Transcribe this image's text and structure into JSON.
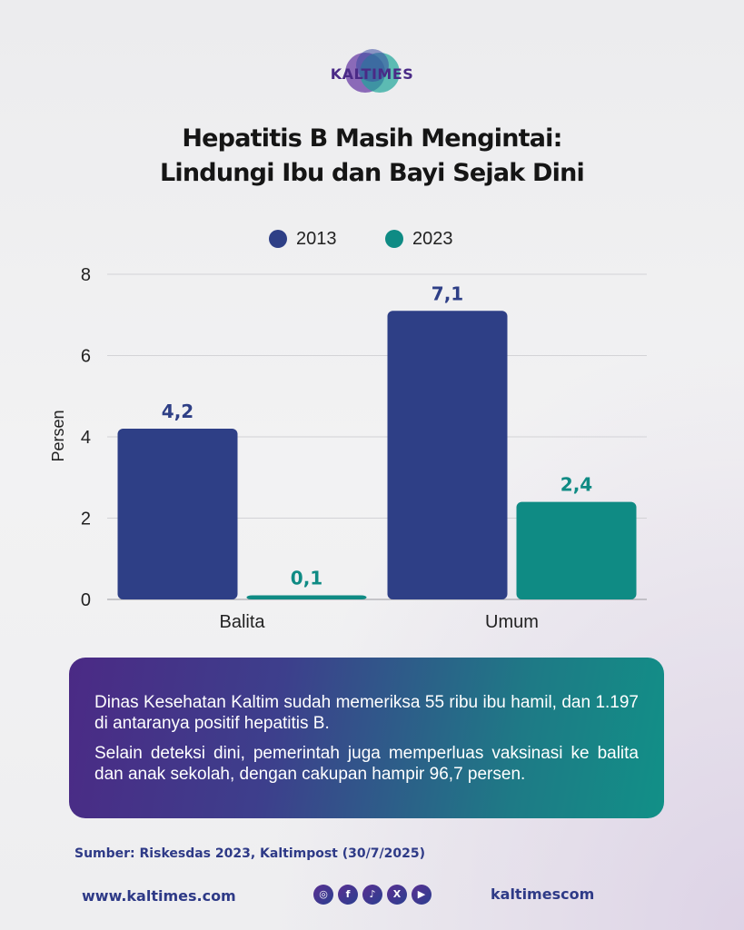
{
  "brand": {
    "logo_text": "KALTIMES"
  },
  "header": {
    "title_line1": "Hepatitis B Masih Mengintai:",
    "title_line2": "Lindungi Ibu dan Bayi Sejak Dini"
  },
  "colors": {
    "series_2013": "#2e3f86",
    "series_2023": "#0f8b84",
    "accent_text": "#2e3a87"
  },
  "chart_data": {
    "type": "bar",
    "categories": [
      "Balita",
      "Umum"
    ],
    "series": [
      {
        "name": "2013",
        "values": [
          4.2,
          7.1
        ],
        "labels": [
          "4,2",
          "7,1"
        ]
      },
      {
        "name": "2023",
        "values": [
          0.1,
          2.4
        ],
        "labels": [
          "0,1",
          "2,4"
        ]
      }
    ],
    "ylabel": "Persen",
    "ylim": [
      0,
      8
    ],
    "yticks": [
      0,
      2,
      4,
      6,
      8
    ],
    "grid": true,
    "legend_position": "top-center"
  },
  "info": {
    "paragraph1": "Dinas Kesehatan Kaltim sudah memeriksa 55 ribu ibu hamil, dan 1.197 di antaranya positif hepatitis B.",
    "paragraph2": "Selain deteksi dini, pemerintah juga memperluas vaksinasi ke balita dan anak sekolah, dengan cakupan hampir 96,7 persen."
  },
  "source": "Sumber: Riskesdas 2023, Kaltimpost (30/7/2025)",
  "footer": {
    "website": "www.kaltimes.com",
    "handle": "kaltimescom",
    "social_icons": [
      "instagram-icon",
      "facebook-icon",
      "tiktok-icon",
      "x-icon",
      "youtube-icon"
    ]
  }
}
